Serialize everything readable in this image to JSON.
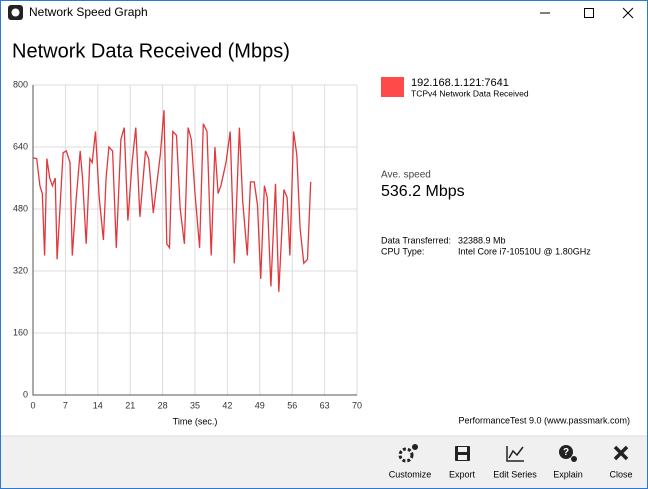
{
  "window": {
    "title": "Network Speed Graph"
  },
  "heading": "Network Data Received (Mbps)",
  "chart_data": {
    "type": "line",
    "x": [
      0,
      0.8,
      1.5,
      2,
      2.5,
      3,
      3.6,
      4.2,
      4.8,
      5.2,
      6.5,
      7.2,
      8,
      8.5,
      9.3,
      10.2,
      10.7,
      11.5,
      12.3,
      12.8,
      13.5,
      14.3,
      15.2,
      15.8,
      16.4,
      17.2,
      18,
      19,
      19.7,
      20.5,
      21.4,
      22.2,
      23.1,
      24.3,
      25,
      26,
      27.5,
      28.3,
      28.9,
      29.5,
      30.2,
      31,
      31.8,
      32.7,
      33.5,
      34.2,
      35,
      36,
      36.8,
      37.6,
      38.5,
      39.3,
      40,
      40.6,
      41.7,
      42.6,
      43.5,
      44.6,
      45.3,
      46.3,
      47,
      47.8,
      48.5,
      49.2,
      50,
      50.6,
      51.4,
      52.4,
      53.1,
      54.2,
      54.9,
      55.5,
      56.3,
      57,
      57.7,
      58.5,
      59.3,
      60
    ],
    "series": [
      {
        "name": "192.168.1.121:7641",
        "description": "TCPv4 Network Data Received",
        "color": "#e0383c",
        "values": [
          612,
          610,
          540,
          520,
          360,
          610,
          560,
          540,
          560,
          350,
          625,
          630,
          600,
          360,
          500,
          630,
          560,
          390,
          610,
          600,
          680,
          510,
          400,
          560,
          640,
          630,
          380,
          660,
          690,
          450,
          600,
          690,
          460,
          630,
          610,
          470,
          620,
          735,
          390,
          380,
          680,
          670,
          480,
          390,
          690,
          660,
          520,
          380,
          700,
          680,
          360,
          640,
          520,
          540,
          600,
          680,
          340,
          690,
          500,
          360,
          550,
          550,
          490,
          300,
          540,
          510,
          280,
          545,
          266,
          530,
          510,
          360,
          680,
          620,
          430,
          340,
          350,
          550
        ]
      }
    ],
    "xlim": [
      0,
      70
    ],
    "xticks": [
      0,
      7,
      14,
      21,
      28,
      35,
      42,
      49,
      56,
      63,
      70
    ],
    "ylim": [
      0,
      800
    ],
    "yticks": [
      0,
      160,
      320,
      480,
      640,
      800
    ],
    "xlabel": "Time (sec.)",
    "grid": true
  },
  "stats": {
    "ave_label": "Ave. speed",
    "ave_value": "536.2 Mbps",
    "rows": [
      [
        "Data Transferred:",
        "32388.9 Mb"
      ],
      [
        "CPU Type:",
        "Intel Core i7-10510U @ 1.80GHz"
      ]
    ]
  },
  "credit": "PerformanceTest 9.0 (www.passmark.com)",
  "toolbar": [
    "Customize",
    "Export",
    "Edit Series",
    "Explain",
    "Close"
  ]
}
